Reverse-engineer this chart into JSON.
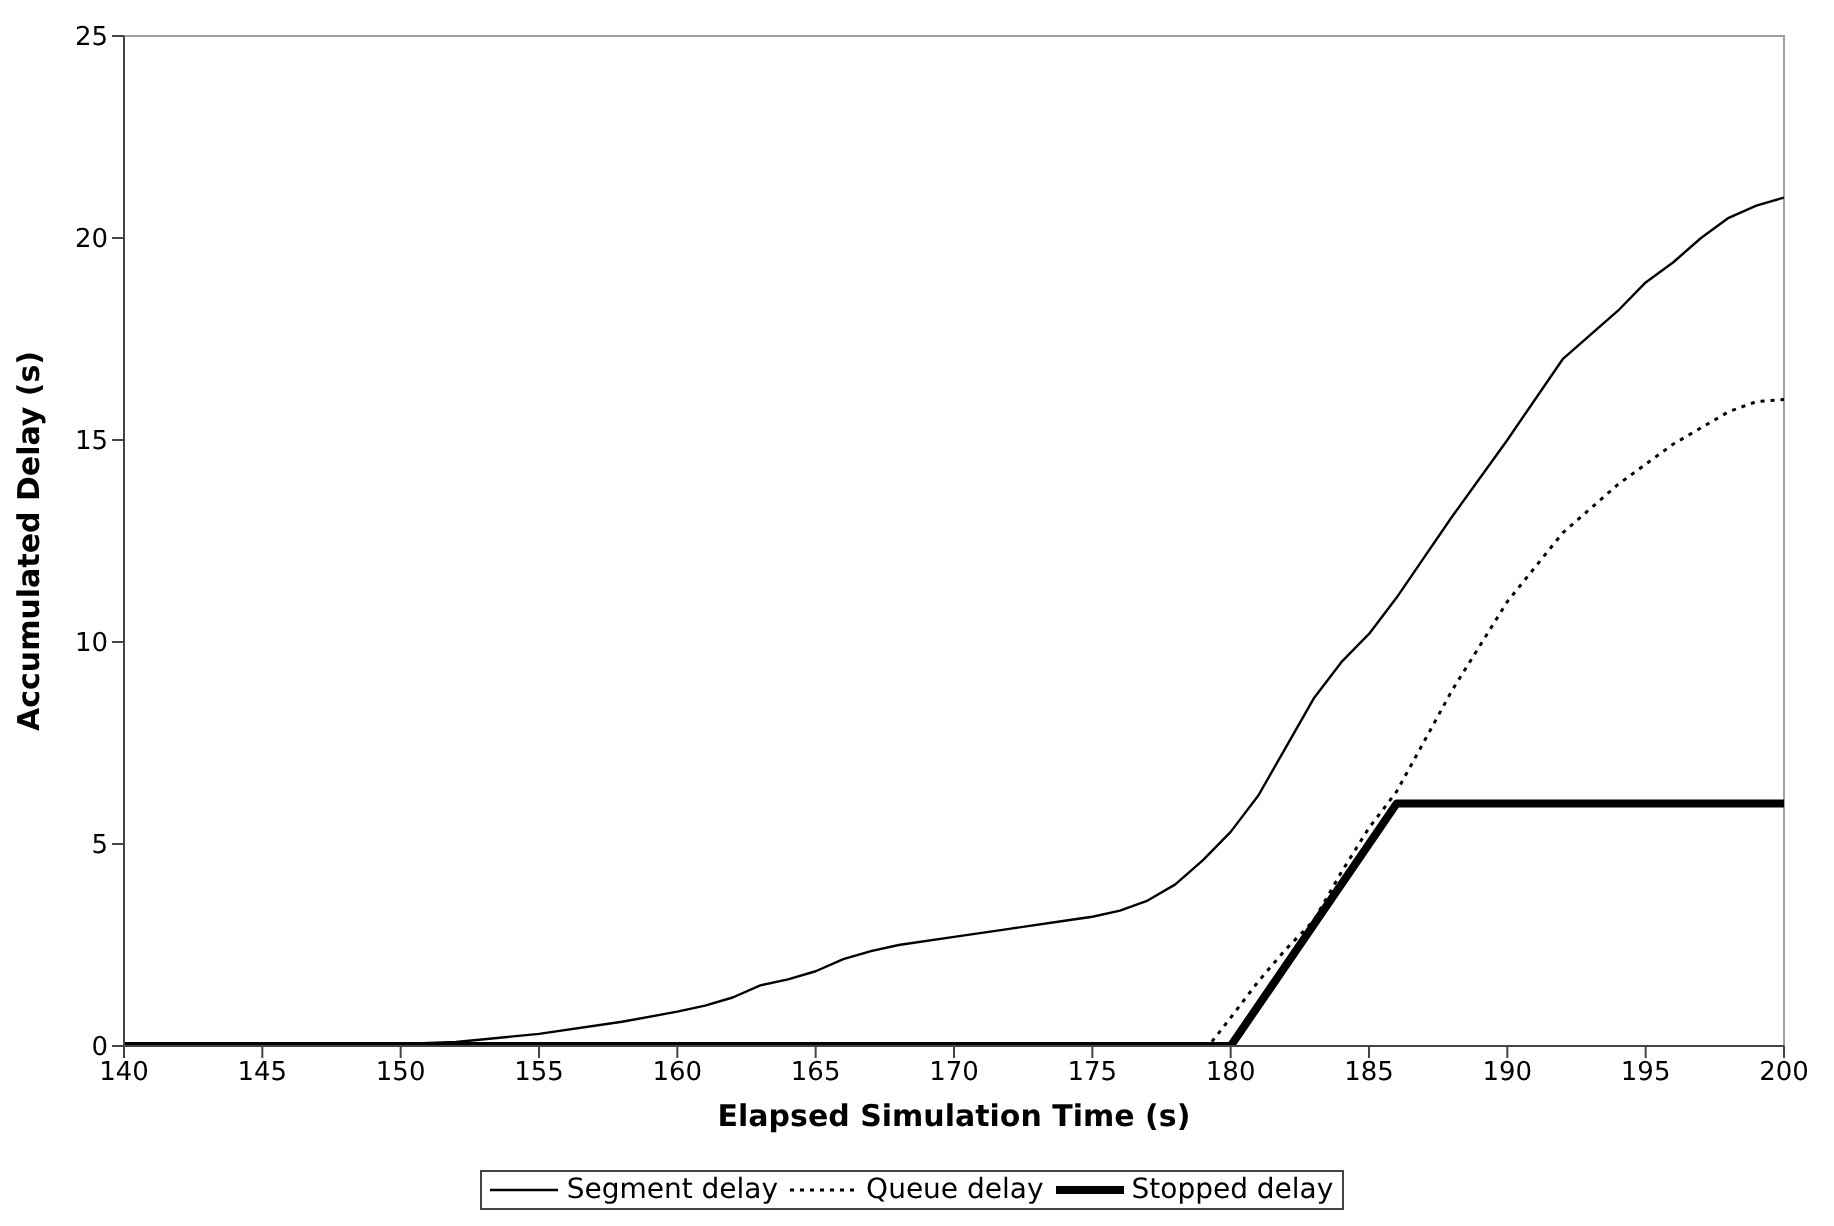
{
  "chart_data": {
    "type": "line",
    "xlabel": "Elapsed Simulation Time (s)",
    "ylabel": "Accumulated Delay (s)",
    "xlim": [
      140,
      200
    ],
    "xticks": [
      140,
      145,
      150,
      155,
      160,
      165,
      170,
      175,
      180,
      185,
      190,
      195,
      200
    ],
    "ylim": [
      0,
      25
    ],
    "yticks": [
      0,
      5,
      10,
      15,
      20,
      25
    ],
    "legend": "bottom",
    "marker": "none",
    "series": [
      {
        "name": "Segment delay",
        "color": "#000000",
        "line_style": "solid",
        "x": [
          140,
          150,
          152,
          155,
          158,
          160,
          161,
          162,
          163,
          164,
          165,
          166,
          167,
          168,
          170,
          172,
          174,
          175,
          176,
          177,
          178,
          179,
          180,
          181,
          182,
          183,
          184,
          185,
          186,
          187,
          188,
          190,
          192,
          193,
          194,
          195,
          196,
          197,
          198,
          199,
          200
        ],
        "values": [
          0.05,
          0.05,
          0.1,
          0.3,
          0.6,
          0.85,
          1.0,
          1.2,
          1.5,
          1.65,
          1.85,
          2.15,
          2.35,
          2.5,
          2.7,
          2.9,
          3.1,
          3.2,
          3.35,
          3.6,
          4.0,
          4.6,
          5.3,
          6.2,
          7.4,
          8.6,
          9.5,
          10.2,
          11.1,
          12.1,
          13.1,
          15.0,
          17.0,
          17.6,
          18.2,
          18.9,
          19.4,
          20.0,
          20.5,
          20.8,
          21.0
        ]
      },
      {
        "name": "Queue delay",
        "color": "#000000",
        "line_style": "dotted",
        "x": [
          140,
          179.2,
          180,
          181,
          182,
          183,
          184,
          185,
          186,
          188,
          190,
          192,
          194,
          196,
          198,
          199,
          200
        ],
        "values": [
          0,
          0,
          0.7,
          1.6,
          2.4,
          3.1,
          4.3,
          5.4,
          6.3,
          8.8,
          11.0,
          12.7,
          13.9,
          14.9,
          15.7,
          15.95,
          16.0
        ]
      },
      {
        "name": "Stopped delay",
        "color": "#000000",
        "line_style": "solid",
        "x": [
          140,
          180,
          186,
          200
        ],
        "values": [
          0,
          0,
          6,
          6
        ]
      }
    ]
  }
}
